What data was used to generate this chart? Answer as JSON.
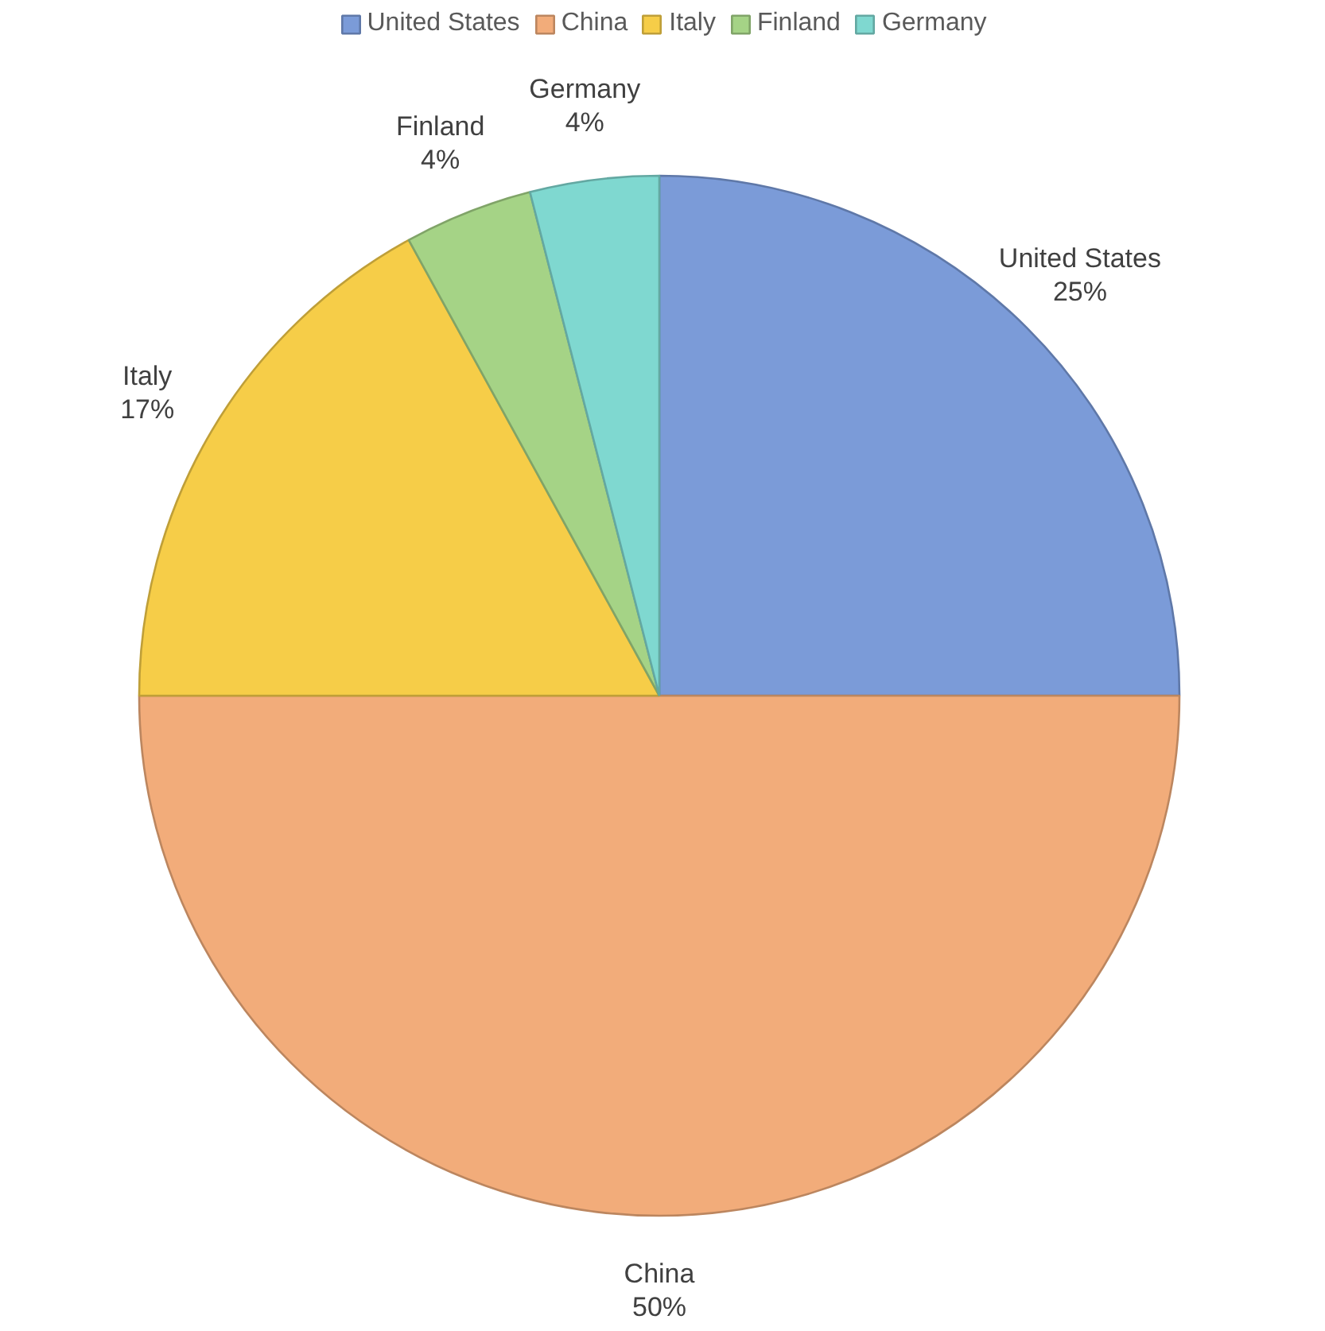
{
  "chart_data": {
    "type": "pie",
    "categories": [
      "United States",
      "China",
      "Italy",
      "Finland",
      "Germany"
    ],
    "values": [
      25,
      50,
      17,
      4,
      4
    ],
    "value_labels": [
      "25%",
      "50%",
      "17%",
      "4%",
      "4%"
    ],
    "colors": [
      "#7b9bd8",
      "#f2ac7a",
      "#f6cd48",
      "#a5d386",
      "#7fd8d0"
    ],
    "legend": "top"
  }
}
